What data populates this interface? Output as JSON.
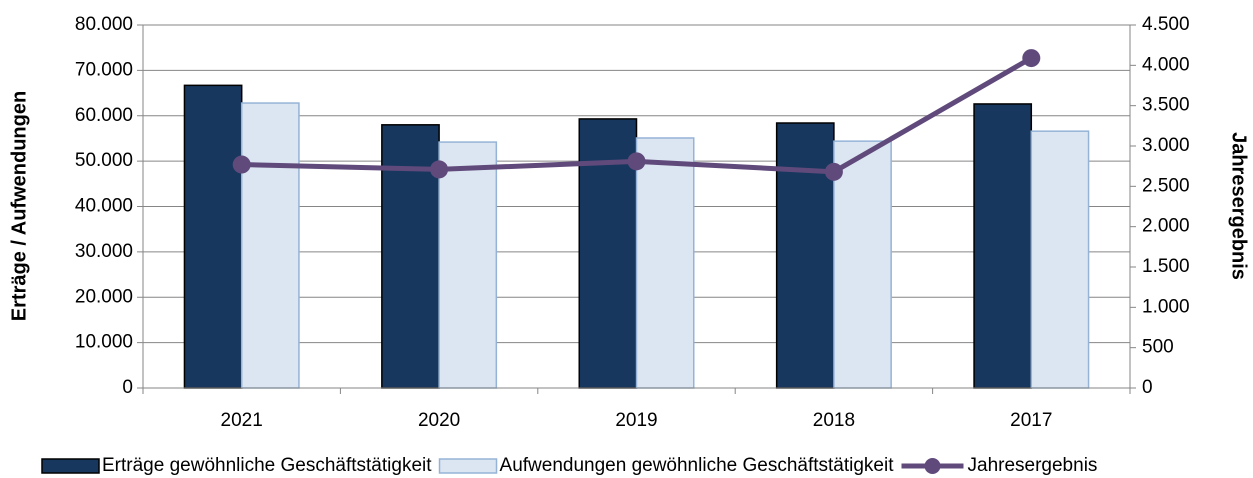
{
  "chart_data": {
    "type": "bar-line",
    "categories": [
      "2021",
      "2020",
      "2019",
      "2018",
      "2017"
    ],
    "series": [
      {
        "name": "Erträge gewöhnliche Geschäftstätigkeit",
        "type": "bar",
        "color": "#17375e",
        "values": [
          66700,
          58000,
          59300,
          58400,
          62600
        ]
      },
      {
        "name": "Aufwendungen gewöhnliche Geschäftstätigkeit",
        "type": "bar",
        "color": "#dce6f2",
        "values": [
          62800,
          54200,
          55100,
          54400,
          56600
        ]
      },
      {
        "name": "Jahresergebnis",
        "type": "line",
        "axis": "y2",
        "color": "#604a7b",
        "values": [
          2770,
          2710,
          2810,
          2680,
          4090
        ]
      }
    ],
    "ylabel": "Erträge / Aufwendungen",
    "y2label": "Jahresergebnis",
    "ylim": [
      0,
      80000
    ],
    "yticks": [
      0,
      {
        "value": 10000,
        "label": "10.000"
      },
      {
        "value": 20000,
        "label": "20.000"
      },
      {
        "value": 30000,
        "label": "30.000"
      },
      {
        "value": 40000,
        "label": "40.000"
      },
      {
        "value": 50000,
        "label": "50.000"
      },
      {
        "value": 60000,
        "label": "60.000"
      },
      {
        "value": 70000,
        "label": "70.000"
      },
      {
        "value": 80000,
        "label": "80.000"
      }
    ],
    "y2lim": [
      0,
      4500
    ],
    "y2ticks": [
      0,
      500,
      {
        "value": 1000,
        "label": "1.000"
      },
      {
        "value": 1500,
        "label": "1.500"
      },
      {
        "value": 2000,
        "label": "2.000"
      },
      {
        "value": 2500,
        "label": "2.500"
      },
      {
        "value": 3000,
        "label": "3.000"
      },
      {
        "value": 3500,
        "label": "3.500"
      },
      {
        "value": 4000,
        "label": "4.000"
      },
      {
        "value": 4500,
        "label": "4.500"
      }
    ],
    "grid": true,
    "legend": "bottom"
  }
}
